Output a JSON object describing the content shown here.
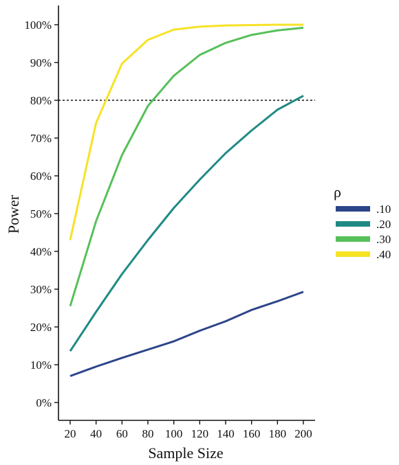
{
  "chart_data": {
    "type": "line",
    "xlabel": "Sample Size",
    "ylabel": "Power",
    "x": [
      20,
      40,
      60,
      80,
      100,
      120,
      140,
      160,
      180,
      200
    ],
    "xlim": [
      20,
      200
    ],
    "ylim": [
      0,
      100
    ],
    "x_ticks": [
      "20",
      "40",
      "60",
      "80",
      "100",
      "120",
      "140",
      "160",
      "180",
      "200"
    ],
    "y_ticks": [
      "0%",
      "10%",
      "20%",
      "30%",
      "40%",
      "50%",
      "60%",
      "70%",
      "80%",
      "90%",
      "100%"
    ],
    "reference_line": {
      "y": 80,
      "style": "dotted"
    },
    "grid": false,
    "legend": {
      "title": "ρ",
      "placement": "right"
    },
    "series": [
      {
        "name": ".10",
        "color": "#2D4489",
        "values": [
          7,
          9.5,
          11.8,
          14,
          16.2,
          19,
          21.5,
          24.5,
          26.8,
          29.3
        ]
      },
      {
        "name": ".20",
        "color": "#1F8A84",
        "values": [
          13.6,
          24,
          34,
          43,
          51.5,
          59,
          66,
          72,
          77.5,
          81.2
        ]
      },
      {
        "name": ".30",
        "color": "#56C05A",
        "values": [
          25.5,
          48,
          65.5,
          78.5,
          86.5,
          92,
          95.2,
          97.3,
          98.5,
          99.2
        ]
      },
      {
        "name": ".40",
        "color": "#F7E225",
        "values": [
          43,
          74,
          89.7,
          96,
          98.7,
          99.5,
          99.8,
          99.9,
          100,
          100
        ]
      }
    ]
  }
}
